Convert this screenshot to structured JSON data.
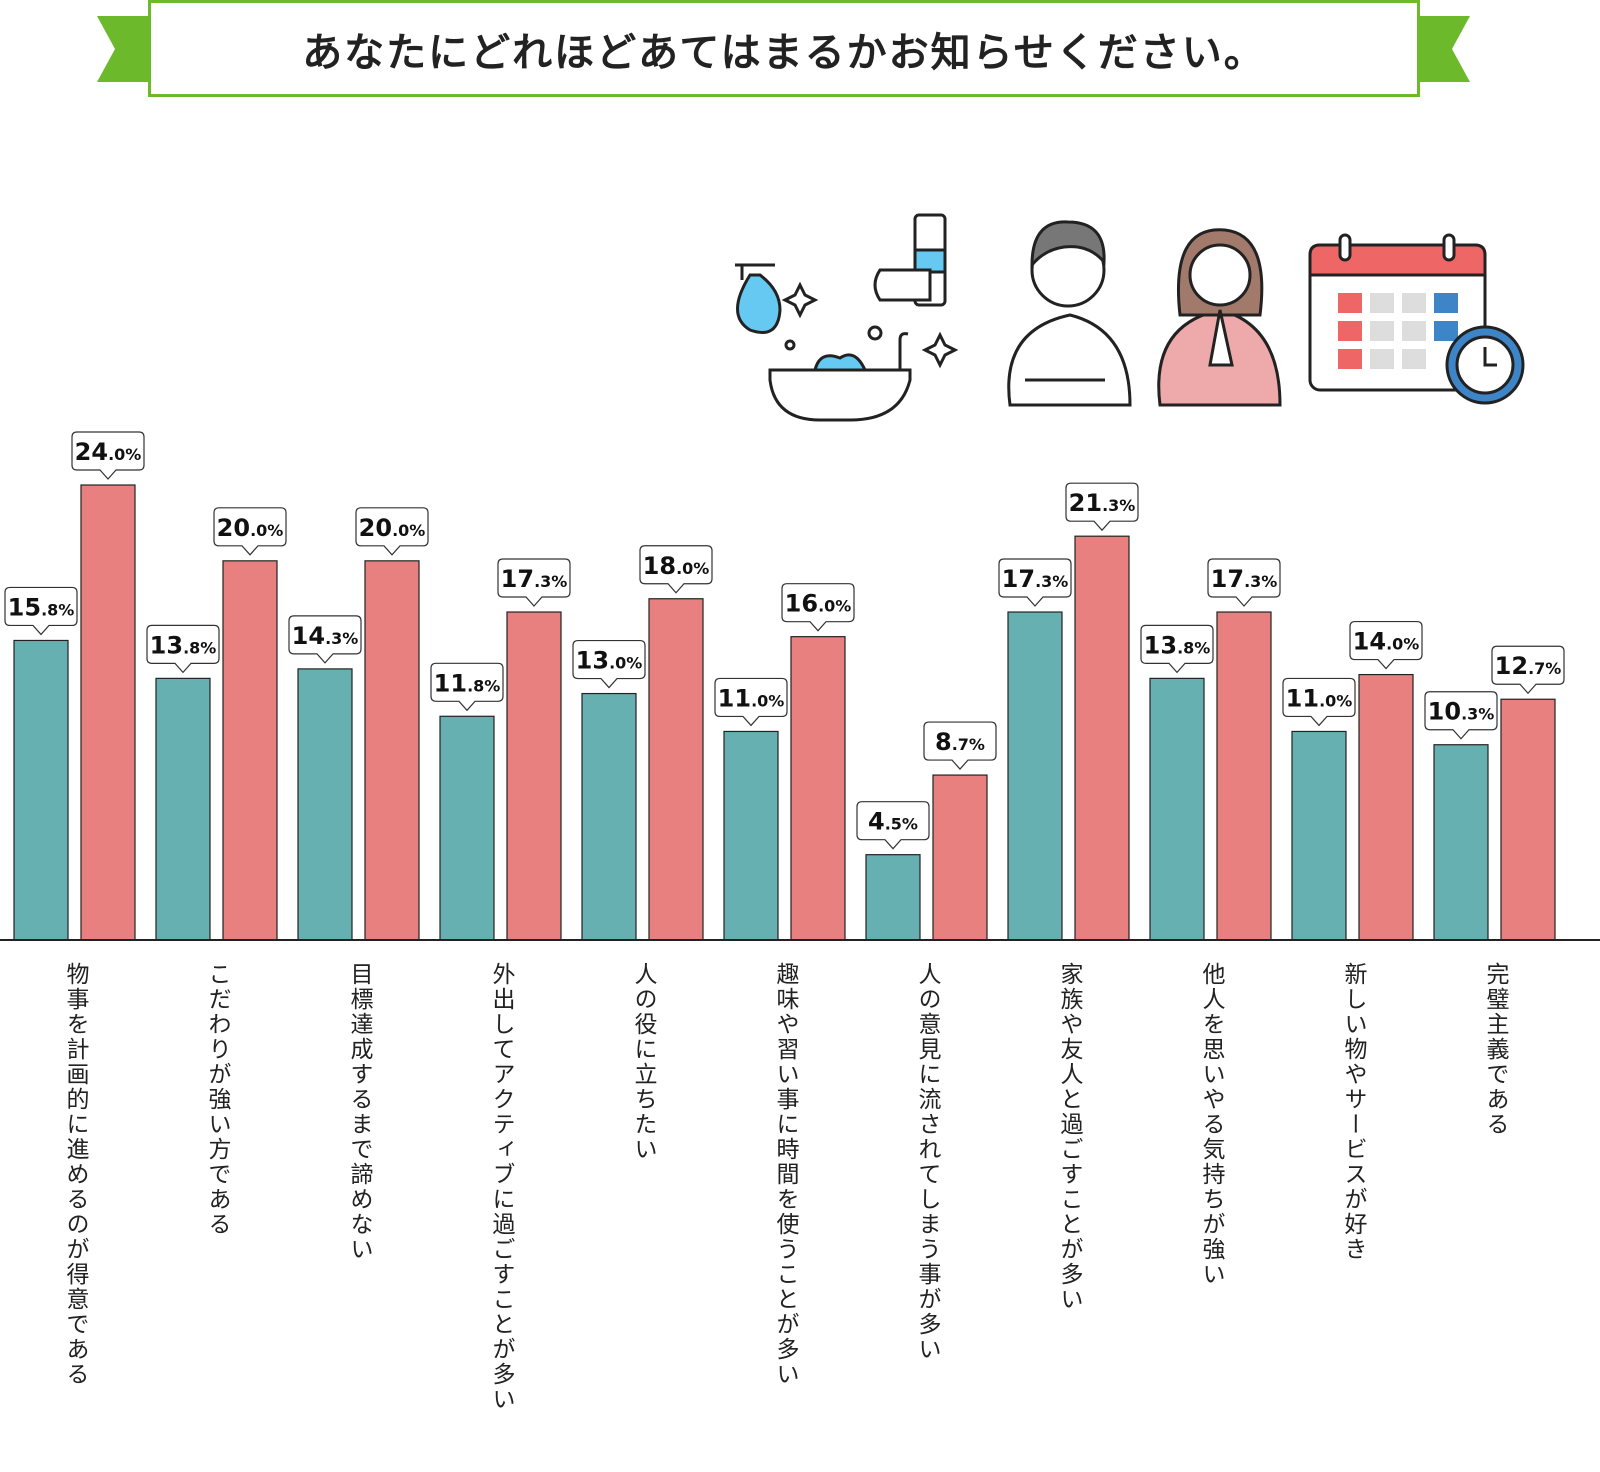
{
  "title": "あなたにどれほどあてはまるかお知らせください。",
  "colors": {
    "series_a": "#66b0b2",
    "series_b": "#e88080",
    "accent": "#6cba2c"
  },
  "chart_data": {
    "type": "bar",
    "title": "あなたにどれほどあてはまるかお知らせください。",
    "xlabel": "",
    "ylabel": "",
    "ylim": [
      0,
      24
    ],
    "grid": false,
    "legend": "none",
    "data_label_unit": "%",
    "categories": [
      "物事を計画的に進めるのが得意である",
      "こだわりが強い方である",
      "目標達成するまで諦めない",
      "外出してアクティブに過ごすことが多い",
      "人の役に立ちたい",
      "趣味や習い事に時間を使うことが多い",
      "人の意見に流されてしまう事が多い",
      "家族や友人と過ごすことが多い",
      "他人を思いやる気持ちが強い",
      "新しい物やサービスが好き",
      "完璧主義である"
    ],
    "series": [
      {
        "color": "#66b0b2",
        "values": [
          15.8,
          13.8,
          14.3,
          11.8,
          13.0,
          11.0,
          4.5,
          17.3,
          13.8,
          11.0,
          10.3
        ]
      },
      {
        "color": "#e88080",
        "values": [
          24.0,
          20.0,
          20.0,
          17.3,
          18.0,
          16.0,
          8.7,
          21.3,
          17.3,
          14.0,
          12.7
        ]
      }
    ]
  },
  "illustrations": [
    "cleaning-icon",
    "man-icon",
    "woman-icon",
    "calendar-clock-icon"
  ]
}
